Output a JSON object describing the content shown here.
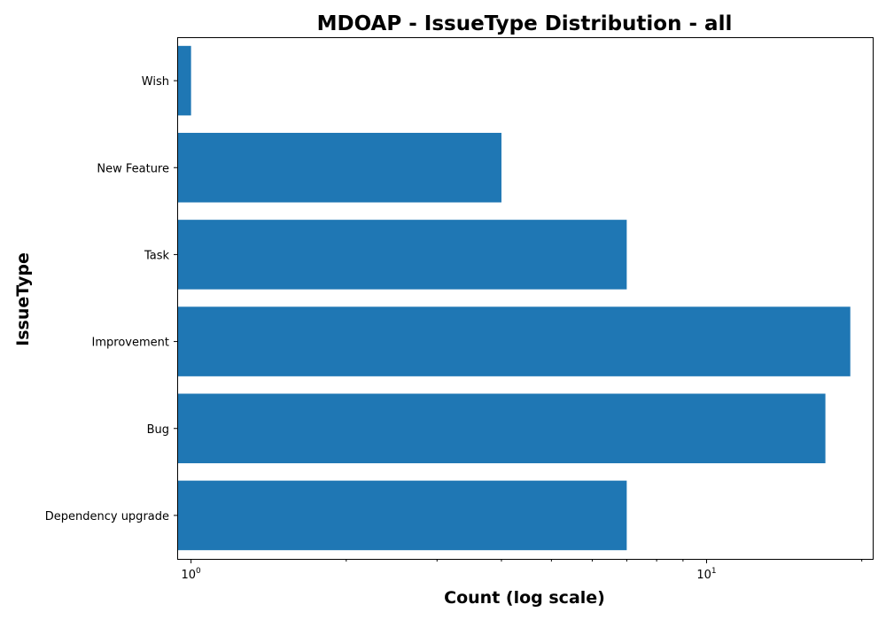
{
  "chart_data": {
    "type": "bar",
    "orientation": "horizontal",
    "title": "MDOAP - IssueType Distribution - all",
    "xlabel": "Count (log scale)",
    "ylabel": "IssueType",
    "x_scale": "log",
    "xlim": [
      0.94,
      21
    ],
    "categories": [
      "Wish",
      "New Feature",
      "Task",
      "Improvement",
      "Bug",
      "Dependency upgrade"
    ],
    "values": [
      1,
      4,
      7,
      19,
      17,
      7
    ],
    "x_major_ticks": [
      {
        "value": 1,
        "base": "10",
        "exp": "0"
      },
      {
        "value": 10,
        "base": "10",
        "exp": "1"
      }
    ],
    "x_minor_ticks": [
      2,
      3,
      4,
      5,
      6,
      7,
      8,
      9,
      20
    ],
    "bar_color": "#1f77b4",
    "grid": false,
    "legend": "none"
  }
}
